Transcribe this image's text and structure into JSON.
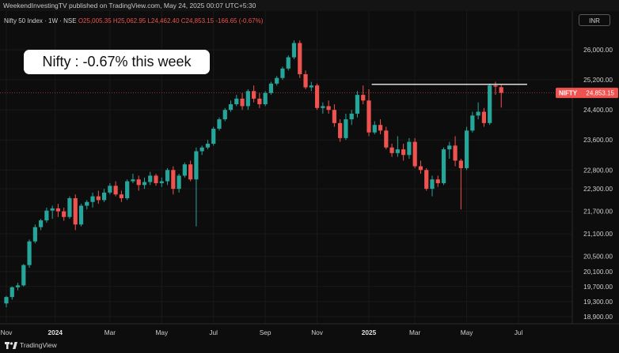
{
  "header": {
    "publisher_line": "WeekendInvestingTV published on TradingView.com, May 24, 2025 00:07 UTC+5:30",
    "symbol": "Nifty 50 Index · 1W · NSE",
    "open": "O25,005.35",
    "high": "H25,062.95",
    "low": "L24,462.40",
    "close": "C24,853.15",
    "change": "-166.65 (-0.67%)",
    "currency": "INR"
  },
  "callout": "Nifty : -0.67% this week",
  "price_label": {
    "tag": "NIFTY",
    "value": "24,853.15"
  },
  "brand": "TradingView",
  "chart_data": {
    "type": "candlestick",
    "title": "Nifty 50 Index · 1W · NSE",
    "ylim": [
      18750,
      26400
    ],
    "y_ticks": [
      {
        "value": 26000,
        "label": "26,000.00"
      },
      {
        "value": 25200,
        "label": "25,200.00"
      },
      {
        "value": 24400,
        "label": "24,400.00"
      },
      {
        "value": 23600,
        "label": "23,600.00"
      },
      {
        "value": 22800,
        "label": "22,800.00"
      },
      {
        "value": 22300,
        "label": "22,300.00"
      },
      {
        "value": 21700,
        "label": "21,700.00"
      },
      {
        "value": 21100,
        "label": "21,100.00"
      },
      {
        "value": 20500,
        "label": "20,500.00"
      },
      {
        "value": 20100,
        "label": "20,100.00"
      },
      {
        "value": 19700,
        "label": "19,700.00"
      },
      {
        "value": 19300,
        "label": "19,300.00"
      },
      {
        "value": 18900,
        "label": "18,900.00"
      }
    ],
    "x_ticks": [
      {
        "week": 0,
        "label": "Nov"
      },
      {
        "week": 8.5,
        "label": "2024"
      },
      {
        "week": 18,
        "label": "Mar"
      },
      {
        "week": 27,
        "label": "May"
      },
      {
        "week": 36,
        "label": "Jul"
      },
      {
        "week": 45,
        "label": "Sep"
      },
      {
        "week": 54,
        "label": "Nov"
      },
      {
        "week": 63,
        "label": "2025"
      },
      {
        "week": 71,
        "label": "Mar"
      },
      {
        "week": 80,
        "label": "May"
      },
      {
        "week": 89,
        "label": "Jul"
      }
    ],
    "resistance_level": 25080,
    "last_close": 24853.15,
    "candles": [
      {
        "o": 19250,
        "h": 19450,
        "l": 19150,
        "c": 19420
      },
      {
        "o": 19420,
        "h": 19700,
        "l": 19350,
        "c": 19680
      },
      {
        "o": 19680,
        "h": 19800,
        "l": 19600,
        "c": 19730
      },
      {
        "o": 19730,
        "h": 20300,
        "l": 19700,
        "c": 20270
      },
      {
        "o": 20270,
        "h": 20950,
        "l": 20200,
        "c": 20900
      },
      {
        "o": 20900,
        "h": 21350,
        "l": 20850,
        "c": 21280
      },
      {
        "o": 21280,
        "h": 21500,
        "l": 21200,
        "c": 21460
      },
      {
        "o": 21460,
        "h": 21800,
        "l": 21400,
        "c": 21720
      },
      {
        "o": 21720,
        "h": 21850,
        "l": 21500,
        "c": 21780
      },
      {
        "o": 21780,
        "h": 21900,
        "l": 21550,
        "c": 21700
      },
      {
        "o": 21700,
        "h": 21800,
        "l": 21450,
        "c": 21550
      },
      {
        "o": 21550,
        "h": 22100,
        "l": 21500,
        "c": 22050
      },
      {
        "o": 22050,
        "h": 22150,
        "l": 21200,
        "c": 21350
      },
      {
        "o": 21350,
        "h": 21900,
        "l": 21300,
        "c": 21850
      },
      {
        "o": 21850,
        "h": 22000,
        "l": 21750,
        "c": 21950
      },
      {
        "o": 21950,
        "h": 22200,
        "l": 21800,
        "c": 22100
      },
      {
        "o": 22100,
        "h": 22250,
        "l": 21900,
        "c": 22000
      },
      {
        "o": 22000,
        "h": 22300,
        "l": 21950,
        "c": 22200
      },
      {
        "o": 22200,
        "h": 22450,
        "l": 22150,
        "c": 22380
      },
      {
        "o": 22380,
        "h": 22500,
        "l": 22100,
        "c": 22150
      },
      {
        "o": 22150,
        "h": 22250,
        "l": 21950,
        "c": 22050
      },
      {
        "o": 22050,
        "h": 22550,
        "l": 22000,
        "c": 22500
      },
      {
        "o": 22500,
        "h": 22700,
        "l": 22450,
        "c": 22550
      },
      {
        "o": 22550,
        "h": 22650,
        "l": 22250,
        "c": 22400
      },
      {
        "o": 22400,
        "h": 22600,
        "l": 22300,
        "c": 22480
      },
      {
        "o": 22480,
        "h": 22750,
        "l": 22400,
        "c": 22650
      },
      {
        "o": 22650,
        "h": 22700,
        "l": 22380,
        "c": 22450
      },
      {
        "o": 22450,
        "h": 22600,
        "l": 22350,
        "c": 22500
      },
      {
        "o": 22500,
        "h": 22850,
        "l": 22400,
        "c": 22800
      },
      {
        "o": 22800,
        "h": 22900,
        "l": 22150,
        "c": 22300
      },
      {
        "o": 22300,
        "h": 22700,
        "l": 22200,
        "c": 22650
      },
      {
        "o": 22650,
        "h": 23000,
        "l": 22600,
        "c": 22950
      },
      {
        "o": 22950,
        "h": 23050,
        "l": 22500,
        "c": 22550
      },
      {
        "o": 22550,
        "h": 23400,
        "l": 21300,
        "c": 23300
      },
      {
        "o": 23300,
        "h": 23450,
        "l": 23200,
        "c": 23400
      },
      {
        "o": 23400,
        "h": 23600,
        "l": 23350,
        "c": 23500
      },
      {
        "o": 23500,
        "h": 23950,
        "l": 23450,
        "c": 23900
      },
      {
        "o": 23900,
        "h": 24200,
        "l": 23850,
        "c": 24150
      },
      {
        "o": 24150,
        "h": 24450,
        "l": 24100,
        "c": 24400
      },
      {
        "o": 24400,
        "h": 24650,
        "l": 24350,
        "c": 24550
      },
      {
        "o": 24550,
        "h": 24800,
        "l": 24500,
        "c": 24700
      },
      {
        "o": 24700,
        "h": 24850,
        "l": 24400,
        "c": 24500
      },
      {
        "o": 24500,
        "h": 24950,
        "l": 24400,
        "c": 24900
      },
      {
        "o": 24900,
        "h": 25050,
        "l": 24600,
        "c": 24700
      },
      {
        "o": 24700,
        "h": 24850,
        "l": 24450,
        "c": 24550
      },
      {
        "o": 24550,
        "h": 24900,
        "l": 24500,
        "c": 24850
      },
      {
        "o": 24850,
        "h": 25150,
        "l": 24800,
        "c": 25100
      },
      {
        "o": 25100,
        "h": 25300,
        "l": 25050,
        "c": 25250
      },
      {
        "o": 25250,
        "h": 25550,
        "l": 25200,
        "c": 25500
      },
      {
        "o": 25500,
        "h": 25850,
        "l": 25450,
        "c": 25800
      },
      {
        "o": 25800,
        "h": 26250,
        "l": 25750,
        "c": 26180
      },
      {
        "o": 26180,
        "h": 26250,
        "l": 25250,
        "c": 25350
      },
      {
        "o": 25350,
        "h": 25450,
        "l": 24950,
        "c": 25000
      },
      {
        "o": 25000,
        "h": 25150,
        "l": 24900,
        "c": 25050
      },
      {
        "o": 25050,
        "h": 25100,
        "l": 24400,
        "c": 24450
      },
      {
        "o": 24450,
        "h": 24600,
        "l": 24300,
        "c": 24500
      },
      {
        "o": 24500,
        "h": 24650,
        "l": 24300,
        "c": 24400
      },
      {
        "o": 24400,
        "h": 24550,
        "l": 23950,
        "c": 24050
      },
      {
        "o": 24050,
        "h": 24150,
        "l": 23550,
        "c": 23650
      },
      {
        "o": 23650,
        "h": 24300,
        "l": 23600,
        "c": 24150
      },
      {
        "o": 24150,
        "h": 24400,
        "l": 24000,
        "c": 24300
      },
      {
        "o": 24300,
        "h": 24900,
        "l": 24200,
        "c": 24800
      },
      {
        "o": 24800,
        "h": 25050,
        "l": 24550,
        "c": 24650
      },
      {
        "o": 24650,
        "h": 24950,
        "l": 23700,
        "c": 23800
      },
      {
        "o": 23800,
        "h": 24100,
        "l": 23750,
        "c": 24000
      },
      {
        "o": 24000,
        "h": 24150,
        "l": 23750,
        "c": 23850
      },
      {
        "o": 23850,
        "h": 23950,
        "l": 23350,
        "c": 23400
      },
      {
        "o": 23400,
        "h": 23500,
        "l": 23150,
        "c": 23250
      },
      {
        "o": 23250,
        "h": 23700,
        "l": 23150,
        "c": 23350
      },
      {
        "o": 23350,
        "h": 23500,
        "l": 23050,
        "c": 23200
      },
      {
        "o": 23200,
        "h": 23650,
        "l": 23100,
        "c": 23550
      },
      {
        "o": 23550,
        "h": 23650,
        "l": 22850,
        "c": 22900
      },
      {
        "o": 22900,
        "h": 23050,
        "l": 22700,
        "c": 22800
      },
      {
        "o": 22800,
        "h": 22850,
        "l": 22250,
        "c": 22300
      },
      {
        "o": 22300,
        "h": 22650,
        "l": 22100,
        "c": 22550
      },
      {
        "o": 22550,
        "h": 22650,
        "l": 22350,
        "c": 22450
      },
      {
        "o": 22450,
        "h": 23400,
        "l": 22400,
        "c": 23350
      },
      {
        "o": 23350,
        "h": 23550,
        "l": 23100,
        "c": 23450
      },
      {
        "o": 23450,
        "h": 23700,
        "l": 22900,
        "c": 23050
      },
      {
        "o": 23050,
        "h": 23100,
        "l": 21750,
        "c": 22850
      },
      {
        "o": 22850,
        "h": 23950,
        "l": 22800,
        "c": 23850
      },
      {
        "o": 23850,
        "h": 24350,
        "l": 23800,
        "c": 24250
      },
      {
        "o": 24250,
        "h": 24600,
        "l": 24150,
        "c": 24350
      },
      {
        "o": 24350,
        "h": 24450,
        "l": 23950,
        "c": 24050
      },
      {
        "o": 24050,
        "h": 25100,
        "l": 24000,
        "c": 25050
      },
      {
        "o": 25050,
        "h": 25150,
        "l": 24800,
        "c": 25020
      },
      {
        "o": 25005.35,
        "h": 25062.95,
        "l": 24462.4,
        "c": 24853.15
      }
    ]
  }
}
